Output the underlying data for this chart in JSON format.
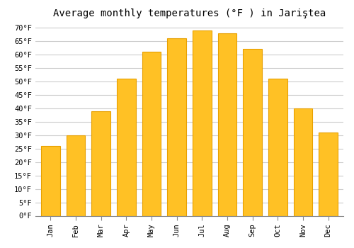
{
  "title": "Average monthly temperatures (°F ) in Jariştea",
  "months": [
    "Jan",
    "Feb",
    "Mar",
    "Apr",
    "May",
    "Jun",
    "Jul",
    "Aug",
    "Sep",
    "Oct",
    "Nov",
    "Dec"
  ],
  "values": [
    26,
    30,
    39,
    51,
    61,
    66,
    69,
    68,
    62,
    51,
    40,
    31
  ],
  "bar_color": "#FFC125",
  "bar_edge_color": "#E8A000",
  "background_color": "#FFFFFF",
  "grid_color": "#CCCCCC",
  "ytick_min": 0,
  "ytick_max": 70,
  "ytick_step": 5,
  "title_fontsize": 10,
  "tick_fontsize": 7.5,
  "font_family": "monospace"
}
